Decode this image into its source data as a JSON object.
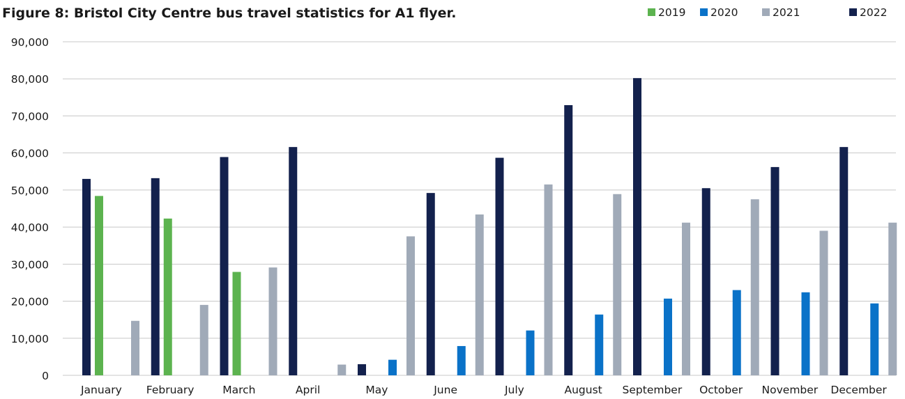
{
  "chart_data": {
    "type": "bar",
    "title": "Figure 8: Bristol City Centre bus travel statistics for A1 flyer.",
    "xlabel": "",
    "ylabel": "",
    "ylim": [
      0,
      90000
    ],
    "yticks": [
      0,
      10000,
      20000,
      30000,
      40000,
      50000,
      60000,
      70000,
      80000,
      90000
    ],
    "ytick_labels": [
      "0",
      "10,000",
      "20,000",
      "30,000",
      "40,000",
      "50,000",
      "60,000",
      "70,000",
      "80,000",
      "90,000"
    ],
    "grid": true,
    "legend_position": "top-right",
    "categories": [
      "January",
      "February",
      "March",
      "April",
      "May",
      "June",
      "July",
      "August",
      "September",
      "October",
      "November",
      "December"
    ],
    "series": [
      {
        "name": "2022",
        "color": "#13214d",
        "values": [
          53000,
          53200,
          58900,
          61600,
          3000,
          49200,
          58700,
          72900,
          80200,
          50500,
          56200,
          61600
        ]
      },
      {
        "name": "2019",
        "color": "#5cb34f",
        "values": [
          48400,
          42300,
          27900,
          null,
          null,
          null,
          null,
          null,
          null,
          null,
          null,
          null
        ]
      },
      {
        "name": "2020",
        "color": "#0a72c8",
        "values": [
          null,
          null,
          null,
          null,
          4200,
          7900,
          12100,
          16400,
          20700,
          23000,
          22400,
          19400
        ]
      },
      {
        "name": "2021",
        "color": "#a0aab8",
        "values": [
          14700,
          19000,
          29100,
          2900,
          37500,
          43400,
          51500,
          48900,
          41200,
          47500,
          39000,
          41200
        ]
      }
    ],
    "legend": [
      {
        "name": "2019",
        "color": "#5cb34f"
      },
      {
        "name": "2020",
        "color": "#0a72c8"
      },
      {
        "name": "2021",
        "color": "#a0aab8"
      },
      {
        "name": "2022",
        "color": "#13214d"
      }
    ]
  }
}
